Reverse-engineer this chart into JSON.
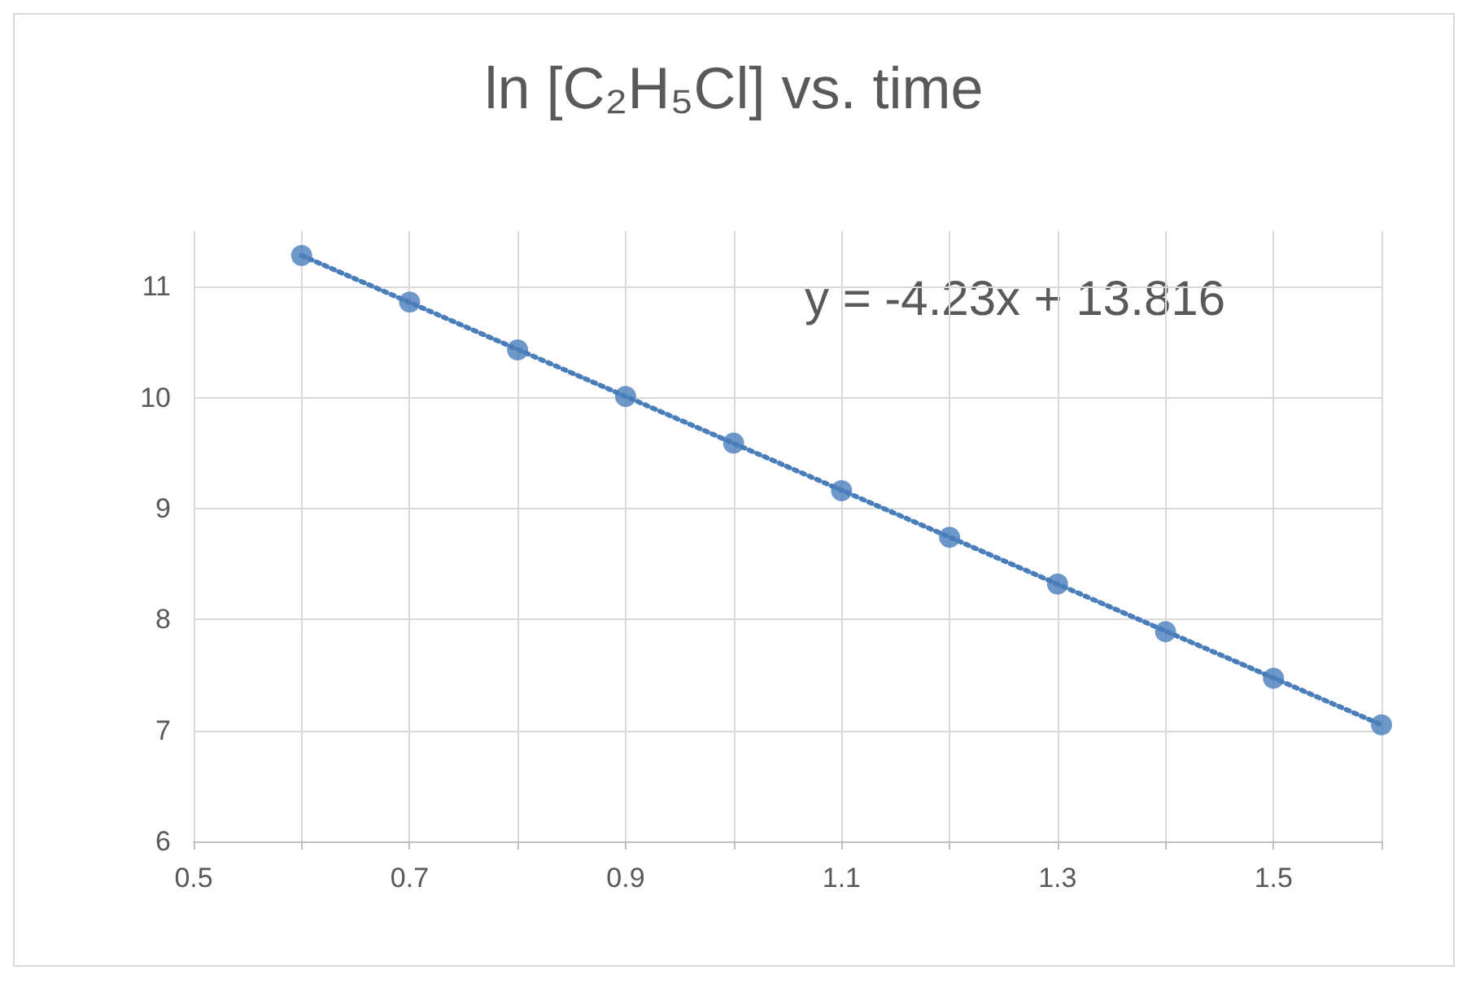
{
  "chart_data": {
    "type": "scatter",
    "title": "ln [C₂H₅Cl] vs. time",
    "x": [
      0.6,
      0.7,
      0.8,
      0.9,
      1.0,
      1.1,
      1.2,
      1.3,
      1.4,
      1.5,
      1.6
    ],
    "series": [
      {
        "color": "#4a7ebb",
        "marker": "circle",
        "values": [
          11.28,
          10.86,
          10.43,
          10.01,
          9.59,
          9.16,
          8.74,
          8.32,
          7.89,
          7.47,
          7.05
        ]
      },
      {
        "type": "line",
        "color": "#4a7ebb",
        "marker": "none",
        "line_style": "dotted",
        "x": [
          0.6,
          1.6
        ],
        "values": [
          11.28,
          7.05
        ]
      }
    ],
    "annotations": [
      "y = -4.23x + 13.816"
    ],
    "xlim": [
      0.5,
      1.6
    ],
    "xticks": [
      0.5,
      {
        "value": 0.6,
        "label": null
      },
      0.7,
      {
        "value": 0.8,
        "label": null
      },
      0.9,
      {
        "value": 1.0,
        "label": null
      },
      1.1,
      {
        "value": 1.2,
        "label": null
      },
      1.3,
      {
        "value": 1.4,
        "label": null
      },
      1.5,
      {
        "value": 1.6,
        "label": null
      }
    ],
    "ylim": [
      6,
      11.5
    ],
    "yticks": [
      6,
      7,
      8,
      9,
      10,
      11
    ],
    "grid": true
  }
}
